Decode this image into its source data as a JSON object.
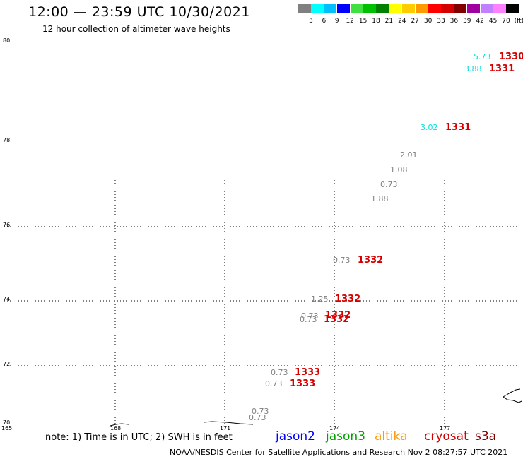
{
  "title": "12:00 — 23:59 UTC 10/30/2021",
  "subtitle": "12 hour collection of altimeter wave heights",
  "legend": {
    "colors": [
      "#808080",
      "#00ffff",
      "#00bfff",
      "#0000ff",
      "#40e040",
      "#00c000",
      "#008000",
      "#ffff00",
      "#ffcc00",
      "#ff9900",
      "#ff0000",
      "#d40000",
      "#800000",
      "#a000a0",
      "#c080ff",
      "#ff80ff",
      "#000000"
    ],
    "labels": [
      "3",
      "6",
      "9",
      "12",
      "15",
      "18",
      "21",
      "24",
      "27",
      "30",
      "33",
      "36",
      "39",
      "42",
      "45",
      "70",
      "(ft)"
    ]
  },
  "axes": {
    "lat_labels": [
      "80",
      "78",
      "76",
      "74",
      "72",
      "70"
    ],
    "lon_labels": [
      "165",
      "168",
      "171",
      "174",
      "177"
    ]
  },
  "observations": [
    {
      "value": "5.73",
      "color": "#00e0e0"
    },
    {
      "value": "3.88",
      "color": "#00e0e0"
    },
    {
      "value": "3.02",
      "color": "#00e0e0"
    },
    {
      "value": "2.01",
      "color": "#808080"
    },
    {
      "value": "1.08",
      "color": "#808080"
    },
    {
      "value": "0.73",
      "color": "#808080"
    },
    {
      "value": "1.88",
      "color": "#808080"
    },
    {
      "value": "0.73",
      "color": "#808080"
    },
    {
      "value": "1.25",
      "color": "#808080"
    },
    {
      "value": "0.73",
      "color": "#808080"
    },
    {
      "value": "0.73",
      "color": "#808080"
    },
    {
      "value": "0.73",
      "color": "#808080"
    },
    {
      "value": "0.73",
      "color": "#808080"
    },
    {
      "value": "0.73",
      "color": "#808080"
    },
    {
      "value": "0.73",
      "color": "#808080"
    }
  ],
  "passes": [
    "1330",
    "1331",
    "1331",
    "1332",
    "1332",
    "1332",
    "1332",
    "1333",
    "1333"
  ],
  "note": "note: 1) Time is in UTC; 2) SWH is in feet",
  "satellites": [
    {
      "name": "jason2",
      "color": "#0000ff"
    },
    {
      "name": "jason3",
      "color": "#00a000"
    },
    {
      "name": "altika",
      "color": "#ff9900"
    },
    {
      "name": "cryosat",
      "color": "#d40000"
    },
    {
      "name": "s3a",
      "color": "#800000"
    }
  ],
  "credit": "NOAA/NESDIS Center for Satellite Applications and Research   Nov  2 08:27:57 UTC 2021"
}
